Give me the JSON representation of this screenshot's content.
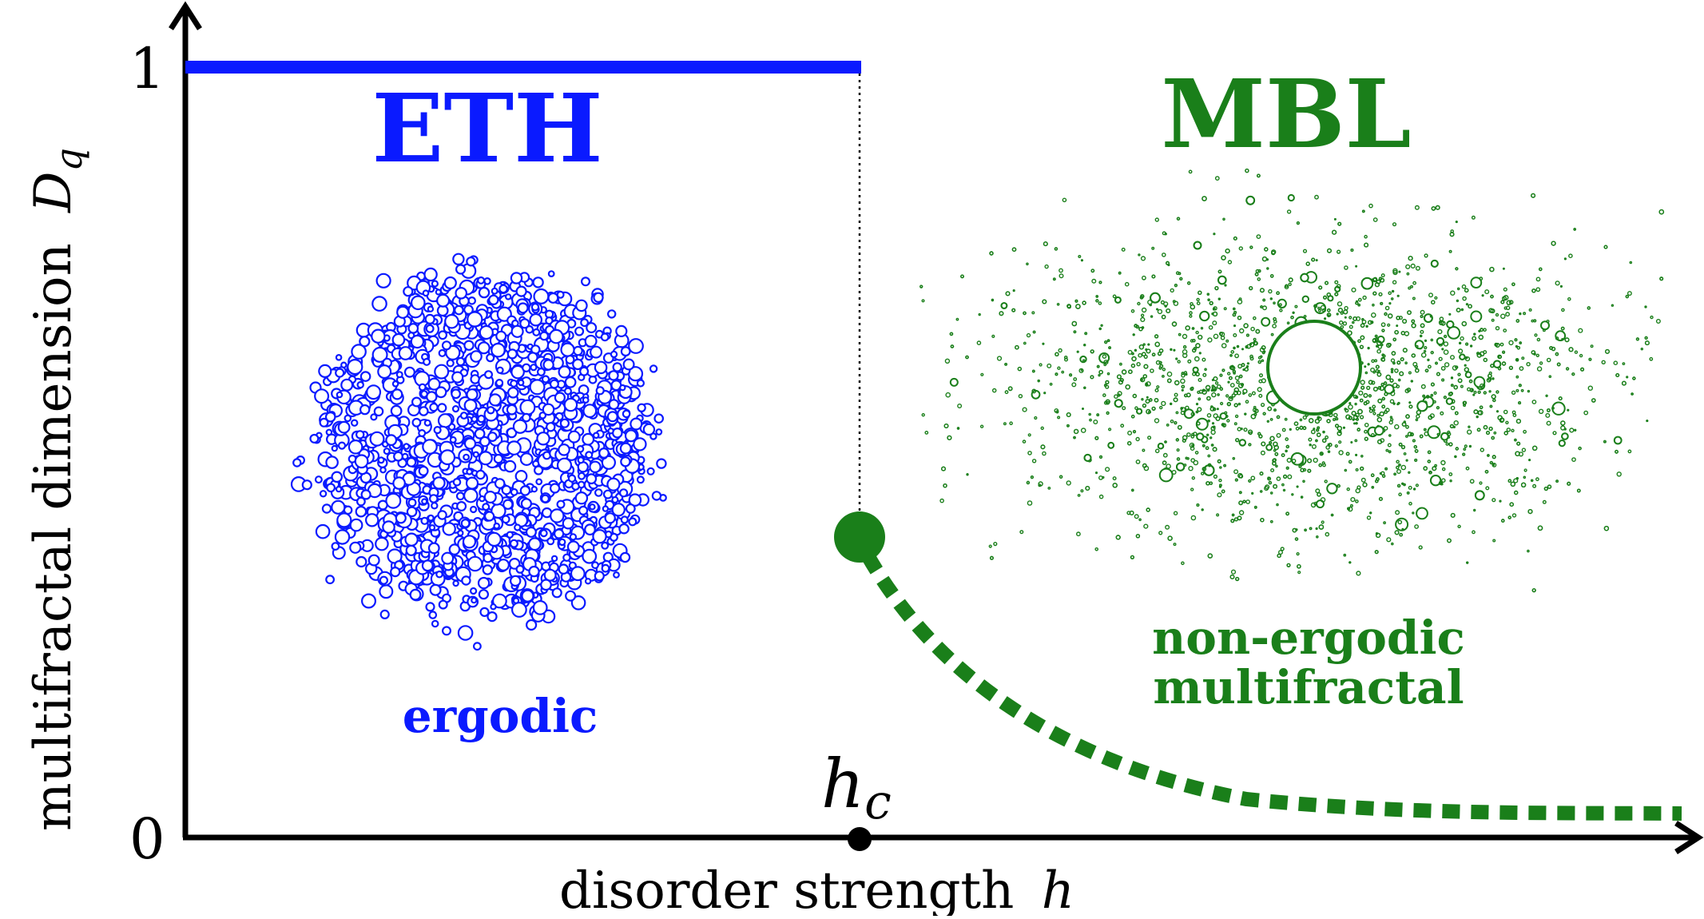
{
  "axes": {
    "y_label": "multifractal dimension",
    "y_symbol": "D",
    "y_symbol_sub": "q",
    "x_label": "disorder strength",
    "x_symbol": "h",
    "y_tick_top": "1",
    "y_tick_bottom": "0",
    "critical_symbol": "h",
    "critical_symbol_sub": "c"
  },
  "phases": {
    "eth": {
      "title": "ETH",
      "description": "ergodic",
      "color": "#0a1aff",
      "dimension": 1
    },
    "mbl": {
      "title": "MBL",
      "description_line1": "non-ergodic",
      "description_line2": "multifractal",
      "color": "#1a7f1a"
    }
  },
  "colors": {
    "axis": "#000000",
    "eth": "#0a1aff",
    "mbl": "#1a7f1a"
  }
}
